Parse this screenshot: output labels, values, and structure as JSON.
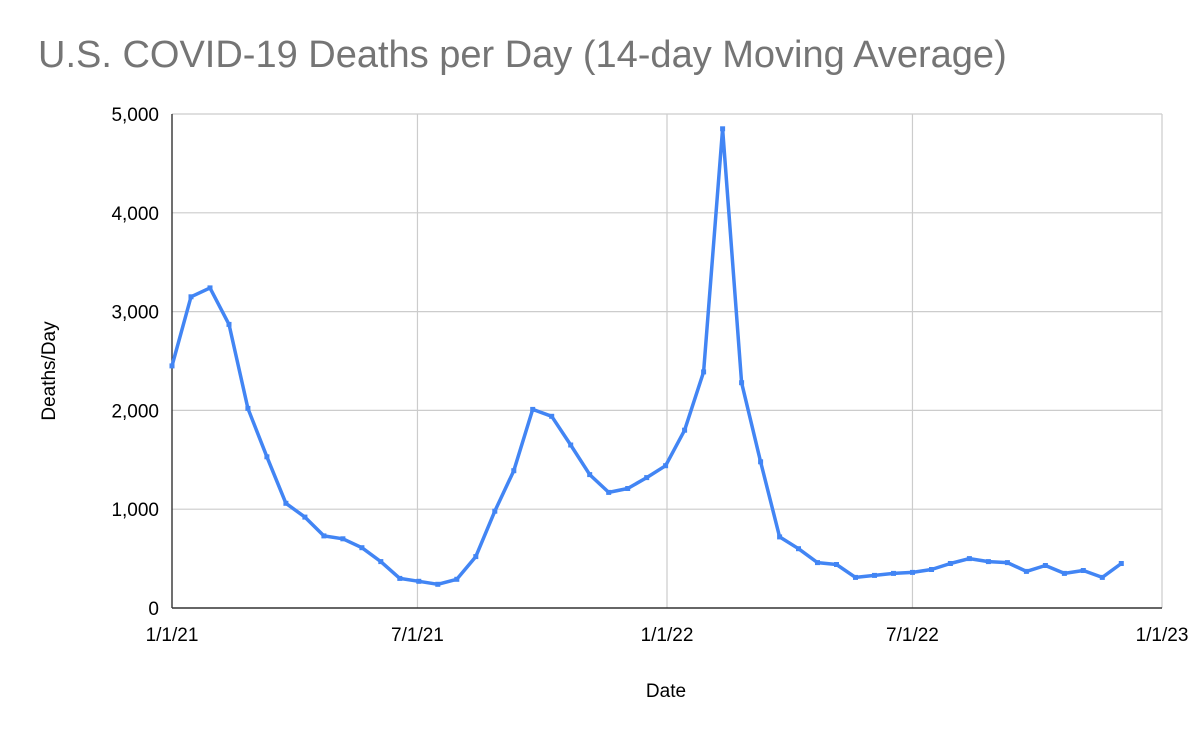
{
  "chart_data": {
    "type": "line",
    "title": "U.S. COVID-19 Deaths per Day (14-day Moving Average)",
    "xlabel": "Date",
    "ylabel": "Deaths/Day",
    "xlim": [
      "2021-01-01",
      "2023-01-01"
    ],
    "ylim": [
      0,
      5000
    ],
    "y_ticks": [
      0,
      1000,
      2000,
      3000,
      4000,
      5000
    ],
    "y_tick_labels": [
      "0",
      "1,000",
      "2,000",
      "3,000",
      "4,000",
      "5,000"
    ],
    "x_ticks": [
      "2021-01-01",
      "2021-07-01",
      "2022-01-01",
      "2022-07-01",
      "2023-01-01"
    ],
    "x_tick_labels": [
      "1/1/21",
      "7/1/21",
      "1/1/22",
      "7/1/22",
      "1/1/23"
    ],
    "grid": true,
    "legend": "none",
    "colors": {
      "line": "#4285f4",
      "grid": "#cccccc",
      "axis": "#333333",
      "title": "#757575"
    },
    "series": [
      {
        "x": [
          "2021-01-01",
          "2021-01-15",
          "2021-01-29",
          "2021-02-12",
          "2021-02-26",
          "2021-03-12",
          "2021-03-26",
          "2021-04-09",
          "2021-04-23",
          "2021-05-07",
          "2021-05-21",
          "2021-06-04",
          "2021-06-18",
          "2021-07-02",
          "2021-07-16",
          "2021-07-30",
          "2021-08-13",
          "2021-08-27",
          "2021-09-10",
          "2021-09-24",
          "2021-10-08",
          "2021-10-22",
          "2021-11-05",
          "2021-11-19",
          "2021-12-03",
          "2021-12-17",
          "2021-12-31",
          "2022-01-14",
          "2022-01-28",
          "2022-02-11",
          "2022-02-25",
          "2022-03-11",
          "2022-03-25",
          "2022-04-08",
          "2022-04-22",
          "2022-05-06",
          "2022-05-20",
          "2022-06-03",
          "2022-06-17",
          "2022-07-01",
          "2022-07-15",
          "2022-07-29",
          "2022-08-12",
          "2022-08-26",
          "2022-09-09",
          "2022-09-23",
          "2022-10-07",
          "2022-10-21",
          "2022-11-04",
          "2022-11-18",
          "2022-12-02"
        ],
        "values": [
          2450,
          3150,
          3240,
          2870,
          2020,
          1530,
          1060,
          920,
          730,
          700,
          610,
          470,
          300,
          270,
          240,
          290,
          520,
          980,
          1390,
          2010,
          1940,
          1650,
          1350,
          1170,
          1210,
          1320,
          1440,
          1800,
          2390,
          4850,
          2280,
          1480,
          720,
          600,
          460,
          440,
          310,
          330,
          350,
          360,
          390,
          450,
          500,
          470,
          460,
          370,
          430,
          350,
          380,
          310,
          450
        ]
      }
    ]
  }
}
